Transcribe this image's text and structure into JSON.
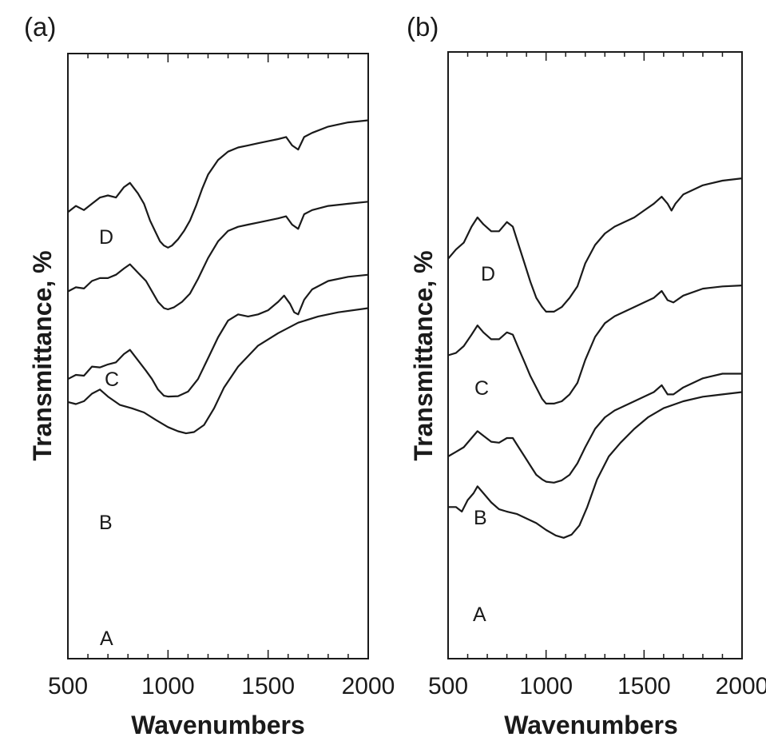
{
  "chart_data": [
    {
      "type": "line",
      "panel_label": "(a)",
      "xlabel": "Wavenumbers",
      "ylabel": "Transmittance, %",
      "xlim": [
        500,
        2000
      ],
      "xticks": [
        500,
        1000,
        1500,
        2000
      ],
      "xtick_labels": [
        "500",
        "1000",
        "1500",
        "2000"
      ],
      "minor_x_step": 100,
      "y_axis_numeric_labels": false,
      "grid": false,
      "legend": "none",
      "line_color": "#1a1a1a",
      "series": [
        {
          "name": "A",
          "x": [
            500,
            540,
            580,
            620,
            660,
            700,
            760,
            820,
            880,
            940,
            1000,
            1050,
            1090,
            1130,
            1180,
            1230,
            1280,
            1350,
            1450,
            1550,
            1650,
            1750,
            1850,
            2000
          ],
          "y": [
            0.565,
            0.56,
            0.567,
            0.585,
            0.595,
            0.578,
            0.558,
            0.55,
            0.54,
            0.522,
            0.505,
            0.495,
            0.49,
            0.493,
            0.51,
            0.55,
            0.6,
            0.65,
            0.7,
            0.73,
            0.755,
            0.77,
            0.78,
            0.79
          ]
        },
        {
          "name": "B",
          "x": [
            500,
            540,
            580,
            620,
            660,
            700,
            740,
            780,
            810,
            850,
            890,
            920,
            950,
            980,
            1000,
            1050,
            1100,
            1150,
            1200,
            1250,
            1300,
            1350,
            1400,
            1450,
            1500,
            1550,
            1580,
            1610,
            1630,
            1650,
            1680,
            1720,
            1800,
            1900,
            2000
          ],
          "y": [
            0.62,
            0.63,
            0.628,
            0.65,
            0.648,
            0.655,
            0.66,
            0.68,
            0.69,
            0.665,
            0.64,
            0.62,
            0.595,
            0.58,
            0.578,
            0.579,
            0.59,
            0.62,
            0.67,
            0.72,
            0.76,
            0.775,
            0.77,
            0.775,
            0.785,
            0.805,
            0.82,
            0.8,
            0.78,
            0.775,
            0.81,
            0.835,
            0.855,
            0.865,
            0.87
          ]
        },
        {
          "name": "C",
          "x": [
            500,
            540,
            580,
            620,
            660,
            700,
            740,
            780,
            810,
            850,
            890,
            920,
            950,
            980,
            1000,
            1030,
            1070,
            1110,
            1150,
            1200,
            1250,
            1300,
            1350,
            1400,
            1450,
            1500,
            1550,
            1590,
            1620,
            1650,
            1680,
            1720,
            1800,
            1900,
            2000
          ],
          "y": [
            0.83,
            0.84,
            0.837,
            0.855,
            0.862,
            0.862,
            0.87,
            0.885,
            0.895,
            0.875,
            0.855,
            0.83,
            0.805,
            0.79,
            0.787,
            0.792,
            0.805,
            0.825,
            0.86,
            0.91,
            0.95,
            0.975,
            0.985,
            0.99,
            0.995,
            1.0,
            1.005,
            1.01,
            0.99,
            0.98,
            1.015,
            1.025,
            1.035,
            1.04,
            1.045
          ]
        },
        {
          "name": "D",
          "x": [
            500,
            540,
            580,
            620,
            660,
            700,
            740,
            780,
            810,
            850,
            880,
            910,
            940,
            960,
            980,
            1000,
            1020,
            1050,
            1080,
            1110,
            1140,
            1170,
            1200,
            1250,
            1300,
            1350,
            1400,
            1450,
            1500,
            1550,
            1590,
            1620,
            1650,
            1680,
            1720,
            1800,
            1900,
            2000
          ],
          "y": [
            1.02,
            1.035,
            1.025,
            1.04,
            1.055,
            1.06,
            1.055,
            1.08,
            1.09,
            1.065,
            1.04,
            1.0,
            0.97,
            0.95,
            0.94,
            0.935,
            0.94,
            0.955,
            0.975,
            1.0,
            1.035,
            1.075,
            1.11,
            1.145,
            1.165,
            1.175,
            1.18,
            1.185,
            1.19,
            1.195,
            1.2,
            1.18,
            1.17,
            1.2,
            1.21,
            1.225,
            1.235,
            1.24
          ]
        }
      ]
    },
    {
      "type": "line",
      "panel_label": "(b)",
      "xlabel": "Wavenumbers",
      "ylabel": "Transmittance, %",
      "xlim": [
        500,
        2000
      ],
      "xticks": [
        500,
        1000,
        1500,
        2000
      ],
      "xtick_labels": [
        "500",
        "1000",
        "1500",
        "2000"
      ],
      "minor_x_step": 100,
      "y_axis_numeric_labels": false,
      "grid": false,
      "legend": "none",
      "line_color": "#1a1a1a",
      "series": [
        {
          "name": "A",
          "x": [
            500,
            540,
            570,
            600,
            630,
            650,
            680,
            720,
            760,
            800,
            850,
            900,
            950,
            1000,
            1050,
            1090,
            1130,
            1170,
            1210,
            1260,
            1320,
            1380,
            1450,
            1520,
            1600,
            1700,
            1800,
            1900,
            2000
          ],
          "y": [
            0.53,
            0.53,
            0.52,
            0.545,
            0.56,
            0.575,
            0.56,
            0.54,
            0.525,
            0.52,
            0.515,
            0.505,
            0.495,
            0.48,
            0.468,
            0.463,
            0.47,
            0.49,
            0.53,
            0.59,
            0.64,
            0.67,
            0.7,
            0.725,
            0.745,
            0.76,
            0.77,
            0.775,
            0.78
          ]
        },
        {
          "name": "B",
          "x": [
            500,
            540,
            580,
            620,
            650,
            680,
            720,
            760,
            800,
            830,
            860,
            890,
            920,
            950,
            980,
            1000,
            1040,
            1080,
            1120,
            1160,
            1200,
            1250,
            1300,
            1350,
            1400,
            1450,
            1500,
            1550,
            1590,
            1620,
            1650,
            1700,
            1800,
            1900,
            2000
          ],
          "y": [
            0.64,
            0.65,
            0.66,
            0.68,
            0.695,
            0.685,
            0.672,
            0.67,
            0.68,
            0.68,
            0.66,
            0.64,
            0.62,
            0.6,
            0.59,
            0.585,
            0.583,
            0.588,
            0.6,
            0.625,
            0.66,
            0.7,
            0.725,
            0.74,
            0.75,
            0.76,
            0.77,
            0.78,
            0.795,
            0.775,
            0.775,
            0.79,
            0.81,
            0.82,
            0.82
          ]
        },
        {
          "name": "C",
          "x": [
            500,
            540,
            580,
            620,
            650,
            680,
            720,
            760,
            800,
            830,
            860,
            890,
            920,
            950,
            980,
            1000,
            1040,
            1080,
            1120,
            1160,
            1200,
            1250,
            1300,
            1350,
            1400,
            1450,
            1500,
            1550,
            1590,
            1620,
            1650,
            1700,
            1800,
            1900,
            2000
          ],
          "y": [
            0.86,
            0.865,
            0.88,
            0.905,
            0.925,
            0.91,
            0.895,
            0.895,
            0.91,
            0.905,
            0.875,
            0.845,
            0.815,
            0.79,
            0.765,
            0.755,
            0.755,
            0.76,
            0.775,
            0.8,
            0.85,
            0.9,
            0.93,
            0.945,
            0.955,
            0.965,
            0.975,
            0.985,
            1.0,
            0.98,
            0.975,
            0.99,
            1.005,
            1.01,
            1.012
          ]
        },
        {
          "name": "D",
          "x": [
            500,
            540,
            580,
            620,
            650,
            680,
            720,
            760,
            800,
            830,
            860,
            890,
            920,
            950,
            980,
            1000,
            1040,
            1080,
            1120,
            1160,
            1200,
            1250,
            1300,
            1350,
            1400,
            1450,
            1500,
            1550,
            1590,
            1620,
            1640,
            1660,
            1700,
            1800,
            1900,
            2000
          ],
          "y": [
            1.07,
            1.09,
            1.105,
            1.14,
            1.16,
            1.145,
            1.13,
            1.13,
            1.15,
            1.14,
            1.1,
            1.06,
            1.02,
            0.985,
            0.965,
            0.955,
            0.955,
            0.965,
            0.985,
            1.01,
            1.06,
            1.1,
            1.125,
            1.14,
            1.15,
            1.16,
            1.175,
            1.19,
            1.205,
            1.19,
            1.175,
            1.19,
            1.21,
            1.23,
            1.24,
            1.245
          ]
        }
      ]
    }
  ]
}
